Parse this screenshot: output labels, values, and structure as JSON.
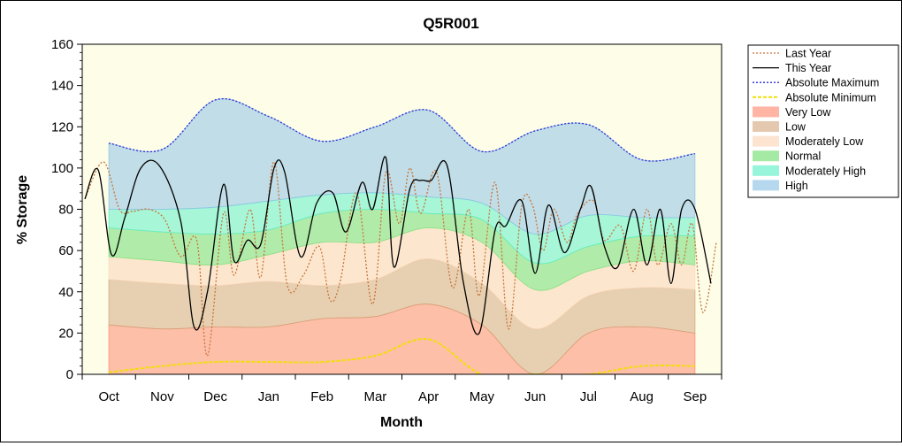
{
  "chart_data": {
    "type": "area",
    "title": "Q5R001",
    "xlabel": "Month",
    "ylabel": "% Storage",
    "ylim": [
      0,
      160
    ],
    "yticks": [
      0,
      20,
      40,
      60,
      80,
      100,
      120,
      140,
      160
    ],
    "xlim": [
      -0.5,
      11.5
    ],
    "categories": [
      "Oct",
      "Nov",
      "Dec",
      "Jan",
      "Feb",
      "Mar",
      "Apr",
      "May",
      "Jun",
      "Jul",
      "Aug",
      "Sep"
    ],
    "legend_position": "right",
    "plot_background": "#fdfde8",
    "bands": [
      {
        "name": "Very Low",
        "color": "#ff8c73",
        "fill_opacity": 0.55,
        "x": [
          0,
          1,
          2,
          3,
          4,
          5,
          6,
          7,
          8,
          9,
          10,
          11
        ],
        "lower": [
          0,
          0,
          0,
          0,
          0,
          0,
          0,
          0,
          0,
          0,
          0,
          0
        ],
        "upper": [
          24,
          22,
          23,
          23,
          27,
          28,
          34,
          24,
          0,
          20,
          23,
          20
        ]
      },
      {
        "name": "Low",
        "color": "#d2a37a",
        "fill_opacity": 0.5,
        "x": [
          0,
          1,
          2,
          3,
          4,
          5,
          6,
          7,
          8,
          9,
          10,
          11
        ],
        "lower": [
          24,
          22,
          23,
          23,
          27,
          28,
          34,
          24,
          0,
          20,
          23,
          20
        ],
        "upper": [
          46,
          44,
          43,
          45,
          43,
          46,
          56,
          44,
          22,
          38,
          42,
          41
        ]
      },
      {
        "name": "Moderately Low",
        "color": "#fbd9bd",
        "fill_opacity": 0.6,
        "x": [
          0,
          1,
          2,
          3,
          4,
          5,
          6,
          7,
          8,
          9,
          10,
          11
        ],
        "lower": [
          46,
          44,
          43,
          45,
          43,
          46,
          56,
          44,
          22,
          38,
          42,
          41
        ],
        "upper": [
          57,
          55,
          53,
          58,
          64,
          64,
          71,
          64,
          41,
          50,
          55,
          53
        ]
      },
      {
        "name": "Normal",
        "color": "#7ee07e",
        "fill_opacity": 0.6,
        "x": [
          0,
          1,
          2,
          3,
          4,
          5,
          6,
          7,
          8,
          9,
          10,
          11
        ],
        "lower": [
          57,
          55,
          53,
          58,
          64,
          64,
          71,
          64,
          41,
          50,
          55,
          53
        ],
        "upper": [
          71,
          69,
          68,
          70,
          78,
          80,
          78,
          75,
          54,
          62,
          67,
          67
        ]
      },
      {
        "name": "Moderately High",
        "color": "#5ff0c8",
        "fill_opacity": 0.55,
        "x": [
          0,
          1,
          2,
          3,
          4,
          5,
          6,
          7,
          8,
          9,
          10,
          11
        ],
        "lower": [
          71,
          69,
          68,
          70,
          78,
          80,
          78,
          75,
          54,
          62,
          67,
          67
        ],
        "upper": [
          80,
          80,
          81,
          84,
          87,
          88,
          86,
          83,
          68,
          77,
          76,
          76
        ]
      },
      {
        "name": "High",
        "color": "#8fc3e6",
        "fill_opacity": 0.55,
        "x": [
          0,
          1,
          2,
          3,
          4,
          5,
          6,
          7,
          8,
          9,
          10,
          11
        ],
        "lower": [
          80,
          80,
          81,
          84,
          87,
          88,
          86,
          83,
          68,
          77,
          76,
          76
        ],
        "upper": [
          112,
          109,
          133,
          125,
          113,
          120,
          128,
          108,
          118,
          121,
          104,
          107
        ]
      }
    ],
    "series": [
      {
        "name": "Absolute Maximum",
        "color": "#2a2ad8",
        "dash": "2,2",
        "x": [
          0,
          1,
          2,
          3,
          4,
          5,
          6,
          7,
          8,
          9,
          10,
          11
        ],
        "values": [
          112,
          109,
          133,
          125,
          113,
          120,
          128,
          108,
          118,
          121,
          104,
          107
        ]
      },
      {
        "name": "Absolute Minimum",
        "color": "#f0e000",
        "dash": "4,2",
        "width": 2,
        "x": [
          0,
          1,
          2,
          3,
          4,
          5,
          6,
          7,
          8,
          9,
          10,
          11
        ],
        "values": [
          1,
          4,
          6,
          6,
          6,
          9,
          17,
          0,
          0,
          0,
          4,
          4
        ]
      },
      {
        "name": "Last Year",
        "color": "#c8743a",
        "dash": "2,2",
        "x": [
          -0.45,
          -0.1,
          0.2,
          0.45,
          0.75,
          1.05,
          1.35,
          1.65,
          1.85,
          2.15,
          2.35,
          2.65,
          2.85,
          3.1,
          3.35,
          3.65,
          3.95,
          4.15,
          4.35,
          4.65,
          4.95,
          5.2,
          5.45,
          5.65,
          5.85,
          6.15,
          6.45,
          6.75,
          6.95,
          7.25,
          7.5,
          7.75,
          7.95,
          8.15,
          8.35,
          8.6,
          8.8,
          9.1,
          9.3,
          9.6,
          9.85,
          10.1,
          10.3,
          10.55,
          10.75,
          10.95,
          11.15,
          11.4
        ],
        "values": [
          85,
          103,
          80,
          79,
          80,
          75,
          57,
          65,
          9,
          78,
          48,
          80,
          47,
          103,
          43,
          48,
          62,
          36,
          46,
          88,
          34,
          98,
          73,
          100,
          78,
          98,
          42,
          80,
          38,
          93,
          22,
          82,
          82,
          60,
          80,
          64,
          78,
          84,
          65,
          72,
          50,
          80,
          53,
          73,
          53,
          73,
          30,
          64
        ]
      },
      {
        "name": "This Year",
        "color": "#000000",
        "dash": "",
        "x": [
          -0.45,
          -0.2,
          0.05,
          0.3,
          0.6,
          0.95,
          1.35,
          1.6,
          1.85,
          2.15,
          2.35,
          2.6,
          2.85,
          3.1,
          3.3,
          3.6,
          3.9,
          4.2,
          4.45,
          4.75,
          4.95,
          5.2,
          5.35,
          5.65,
          5.85,
          6.05,
          6.35,
          6.65,
          6.95,
          7.25,
          7.45,
          7.75,
          8.0,
          8.25,
          8.55,
          8.85,
          9.05,
          9.3,
          9.55,
          9.85,
          10.1,
          10.35,
          10.55,
          10.75,
          11.0,
          11.3
        ],
        "values": [
          85,
          99,
          58,
          76,
          100,
          101,
          74,
          23,
          40,
          92,
          55,
          65,
          63,
          100,
          98,
          57,
          83,
          88,
          69,
          93,
          80,
          105,
          52,
          90,
          94,
          94,
          101,
          45,
          20,
          70,
          72,
          84,
          49,
          82,
          59,
          80,
          91,
          62,
          52,
          80,
          53,
          80,
          44,
          80,
          80,
          44
        ]
      }
    ],
    "legend_order": [
      "Last Year",
      "This Year",
      "Absolute Maximum",
      "Absolute Minimum",
      "Very Low",
      "Low",
      "Moderately Low",
      "Normal",
      "Moderately High",
      "High"
    ]
  }
}
